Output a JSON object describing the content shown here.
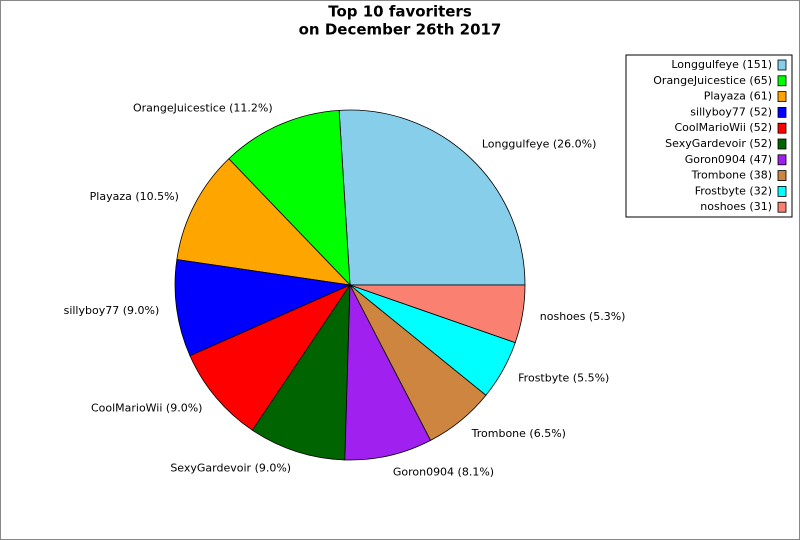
{
  "chart_data": {
    "type": "pie",
    "title": [
      "Top 10 favoriters",
      "on December 26th 2017"
    ],
    "values": [
      151,
      65,
      61,
      52,
      52,
      52,
      47,
      38,
      32,
      31
    ],
    "legend_labels": [
      "Longgulfeye (151)",
      "OrangeJuicestice (65)",
      "Playaza (61)",
      "sillyboy77 (52)",
      "CoolMarioWii (52)",
      "SexyGardevoir (52)",
      "Goron0904 (47)",
      "Trombone (38)",
      "Frostbyte (32)",
      "noshoes (31)"
    ],
    "slice_labels": [
      "Longgulfeye (26.0%)",
      "OrangeJuicestice (11.2%)",
      "Playaza (10.5%)",
      "sillyboy77 (9.0%)",
      "CoolMarioWii (9.0%)",
      "SexyGardevoir (9.0%)",
      "Goron0904 (8.1%)",
      "Trombone (6.5%)",
      "Frostbyte (5.5%)",
      "noshoes (5.3%)"
    ],
    "colors": [
      "#87ceeb",
      "#00ff00",
      "#ffa500",
      "#0000ff",
      "#ff0000",
      "#006400",
      "#a020f0",
      "#cd853f",
      "#00ffff",
      "#fa8072"
    ],
    "legend": "upper right"
  }
}
